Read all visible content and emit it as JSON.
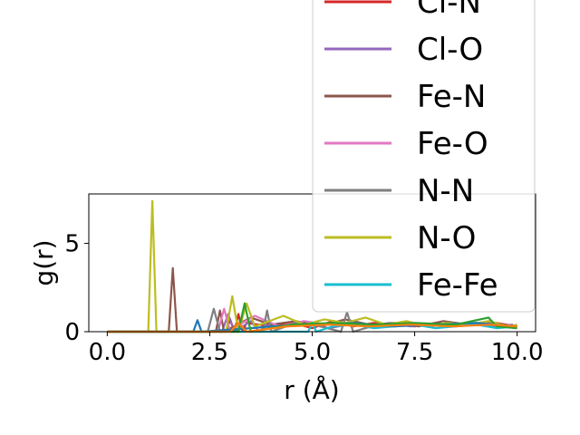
{
  "chart_data": {
    "type": "line",
    "title": "",
    "xlabel": "r (Å)",
    "ylabel": "g(r)",
    "xlim": [
      -0.45,
      10.45
    ],
    "ylim": [
      0,
      7.8
    ],
    "xticks": [
      0.0,
      2.5,
      5.0,
      7.5,
      10.0
    ],
    "xtick_labels": [
      "0.0",
      "2.5",
      "5.0",
      "7.5",
      "10.0"
    ],
    "yticks": [
      0,
      5
    ],
    "ytick_labels": [
      "0",
      "5"
    ],
    "grid": false,
    "legend_placement": "upper-right",
    "series": [
      {
        "name": "Cl-N",
        "color": "#d62728",
        "x": [
          0,
          1,
          2,
          2.9,
          3.0,
          3.1,
          3.2,
          3.3,
          3.4,
          4.0,
          4.5,
          5.0,
          5.5,
          6.0,
          6.5,
          7.0,
          7.5,
          8.0,
          8.5,
          9.0,
          9.5,
          10.0
        ],
        "y": [
          0,
          0,
          0,
          0,
          0.7,
          0,
          1.0,
          0,
          0.5,
          0.3,
          0.5,
          0.2,
          0.6,
          0.3,
          0.5,
          0.4,
          0.3,
          0.5,
          0.3,
          0.4,
          0.5,
          0.3
        ]
      },
      {
        "name": "Cl-O",
        "color": "#9467bd",
        "x": [
          0,
          1,
          2,
          2.8,
          2.95,
          3.1,
          3.5,
          3.7,
          3.9,
          4.4,
          4.9,
          5.4,
          5.9,
          6.4,
          6.9,
          7.4,
          7.9,
          8.4,
          8.9,
          9.4,
          9.9
        ],
        "y": [
          0,
          0,
          0,
          0,
          1.0,
          0,
          0.6,
          0,
          0.4,
          0.3,
          0.5,
          0.2,
          0.4,
          0.3,
          0.5,
          0.3,
          0.4,
          0.3,
          0.5,
          0.3,
          0.4
        ]
      },
      {
        "name": "Fe-N",
        "color": "#8c564b",
        "x": [
          0,
          1.0,
          1.5,
          1.6,
          1.7,
          2.0,
          2.5,
          2.65,
          2.75,
          2.85,
          3.5,
          4.0,
          4.6,
          5.2,
          5.8,
          6.4,
          7.0,
          7.6,
          8.2,
          8.8,
          9.4,
          10.0
        ],
        "y": [
          0,
          0,
          0,
          3.6,
          0,
          0,
          0,
          0,
          1.2,
          0,
          0.8,
          0.4,
          0.6,
          0.3,
          0.7,
          0.4,
          0.5,
          0.3,
          0.6,
          0.4,
          0.5,
          0.3
        ]
      },
      {
        "name": "Fe-O",
        "color": "#e377c2",
        "x": [
          0,
          1,
          2,
          2.7,
          2.85,
          3.0,
          3.3,
          3.6,
          4.2,
          4.8,
          5.4,
          6.0,
          6.6,
          7.2,
          7.8,
          8.4,
          9.0,
          9.6,
          10.0
        ],
        "y": [
          0,
          0,
          0,
          0,
          1.3,
          0,
          0.5,
          0.9,
          0.3,
          0.6,
          0.4,
          0.5,
          0.3,
          0.5,
          0.4,
          0.3,
          0.5,
          0.4,
          0.3
        ]
      },
      {
        "name": "N-N",
        "color": "#7f7f7f",
        "x": [
          0,
          1,
          2,
          2.45,
          2.6,
          2.75,
          3.8,
          3.9,
          4.0,
          4.6,
          5.2,
          5.7,
          5.85,
          6.0,
          6.6,
          7.2,
          7.8,
          8.4,
          9.0,
          9.6,
          10.0
        ],
        "y": [
          0,
          0,
          0,
          0,
          1.3,
          0,
          0,
          1.2,
          0,
          0.5,
          0.3,
          0,
          1.1,
          0,
          0.4,
          0.5,
          0.3,
          0.4,
          0.5,
          0.3,
          0.2
        ]
      },
      {
        "name": "N-O",
        "color": "#bcbd22",
        "x": [
          0,
          0.9,
          1.0,
          1.1,
          1.2,
          1.4,
          2.9,
          3.05,
          3.2,
          3.4,
          3.6,
          4.3,
          4.8,
          5.3,
          5.8,
          6.3,
          6.8,
          7.3,
          7.8,
          8.3,
          8.8,
          9.3,
          9.8,
          10.0
        ],
        "y": [
          0,
          0,
          0,
          7.4,
          0,
          0,
          0,
          2.0,
          0,
          1.6,
          0.3,
          0.9,
          0.4,
          0.7,
          0.5,
          0.8,
          0.4,
          0.6,
          0.3,
          0.5,
          0.4,
          0.6,
          0.3,
          0.4
        ]
      },
      {
        "name": "Fe-Fe",
        "color": "#17becf",
        "x": [
          0,
          1,
          2,
          3,
          4,
          4.9,
          5.0,
          5.1,
          5.5,
          6.0,
          6.5,
          7.0,
          7.5,
          8.0,
          8.5,
          9.0,
          9.5,
          10.0
        ],
        "y": [
          0,
          0,
          0,
          0,
          0,
          0,
          0.5,
          0,
          0.3,
          0.4,
          0.2,
          0.3,
          0.4,
          0.2,
          0.3,
          0.4,
          0.2,
          0.3
        ]
      },
      {
        "name": "",
        "color": "#1f77b4",
        "x": [
          0,
          1,
          2,
          2.1,
          2.2,
          2.3,
          3.5,
          4.0,
          5.0,
          6.0,
          7.0,
          8.0,
          9.0,
          10.0
        ],
        "y": [
          0,
          0,
          0,
          0,
          0.65,
          0,
          0.2,
          0.3,
          0.4,
          0.5,
          0.3,
          0.4,
          0.5,
          0.3
        ]
      },
      {
        "name": "",
        "color": "#2ca02c",
        "x": [
          0,
          1,
          2,
          3.2,
          3.35,
          3.5,
          4.5,
          5.5,
          6.5,
          7.5,
          8.5,
          9.3,
          9.5,
          10.0
        ],
        "y": [
          0,
          0,
          0,
          0,
          1.6,
          0,
          0.4,
          0.5,
          0.4,
          0.5,
          0.4,
          0.8,
          0.3,
          0.2
        ]
      },
      {
        "name": "",
        "color": "#ff7f0e",
        "x": [
          0,
          1,
          2,
          3.0,
          3.2,
          3.4,
          4.4,
          5.4,
          6.4,
          7.4,
          8.4,
          9.4,
          10.0
        ],
        "y": [
          0,
          0,
          0,
          0,
          0.5,
          0,
          0.3,
          0.4,
          0.3,
          0.4,
          0.3,
          0.4,
          0.3
        ]
      }
    ]
  }
}
